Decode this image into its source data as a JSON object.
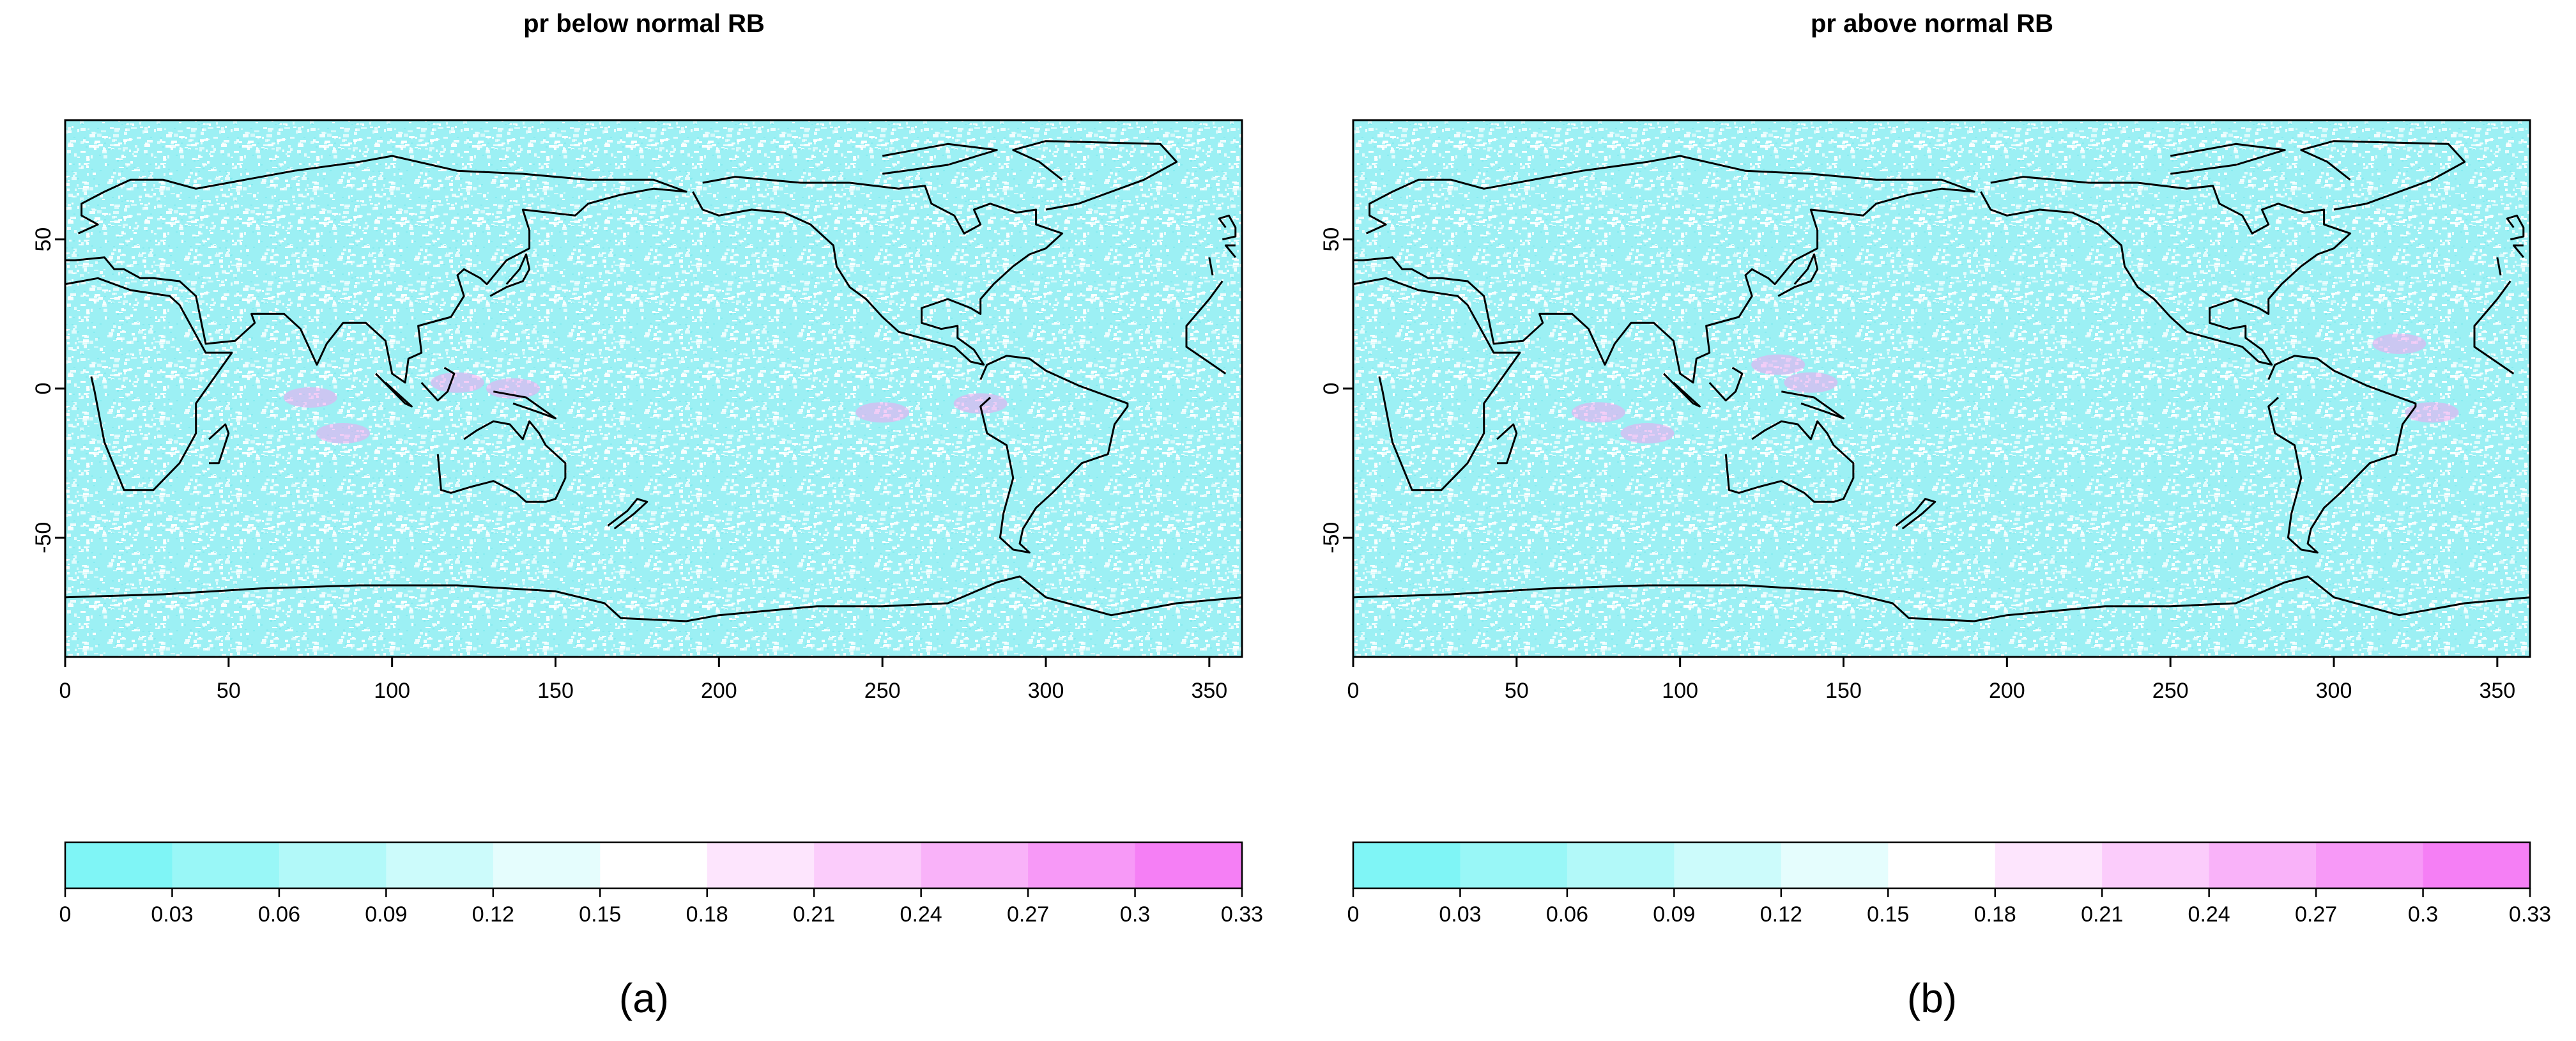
{
  "panels": [
    {
      "id": "a",
      "title": "pr below normal RB",
      "label": "(a)",
      "x_ticks": [
        0,
        50,
        100,
        150,
        200,
        250,
        300,
        350
      ],
      "y_ticks": [
        50,
        0,
        -50
      ],
      "x_range": [
        0,
        360
      ],
      "y_range": [
        -90,
        90
      ],
      "pink_patches": [
        [
          120,
          2
        ],
        [
          137,
          0
        ],
        [
          75,
          -3
        ],
        [
          85,
          -15
        ],
        [
          250,
          -8
        ],
        [
          280,
          -5
        ]
      ]
    },
    {
      "id": "b",
      "title": "pr above normal RB",
      "label": "(b)",
      "x_ticks": [
        0,
        50,
        100,
        150,
        200,
        250,
        300,
        350
      ],
      "y_ticks": [
        50,
        0,
        -50
      ],
      "x_range": [
        0,
        360
      ],
      "y_range": [
        -90,
        90
      ],
      "pink_patches": [
        [
          140,
          2
        ],
        [
          130,
          8
        ],
        [
          75,
          -8
        ],
        [
          90,
          -15
        ],
        [
          330,
          -8
        ],
        [
          320,
          15
        ]
      ]
    }
  ],
  "colorbar": {
    "breaks": [
      "0",
      "0.03",
      "0.06",
      "0.09",
      "0.12",
      "0.15",
      "0.18",
      "0.21",
      "0.24",
      "0.27",
      "0.3",
      "0.33"
    ],
    "colors": [
      "#7ff5f6",
      "#99f7f7",
      "#b2f9f9",
      "#ccfbfb",
      "#e5fdfd",
      "#ffffff",
      "#fde5fd",
      "#fbccfb",
      "#f9b2f9",
      "#f799f7",
      "#f57ff5"
    ]
  },
  "map_colors": {
    "ocean_base": "#9cf0f4",
    "speckle": "#ffffff",
    "pink": "#f3a6f0",
    "coast": "#000000"
  }
}
